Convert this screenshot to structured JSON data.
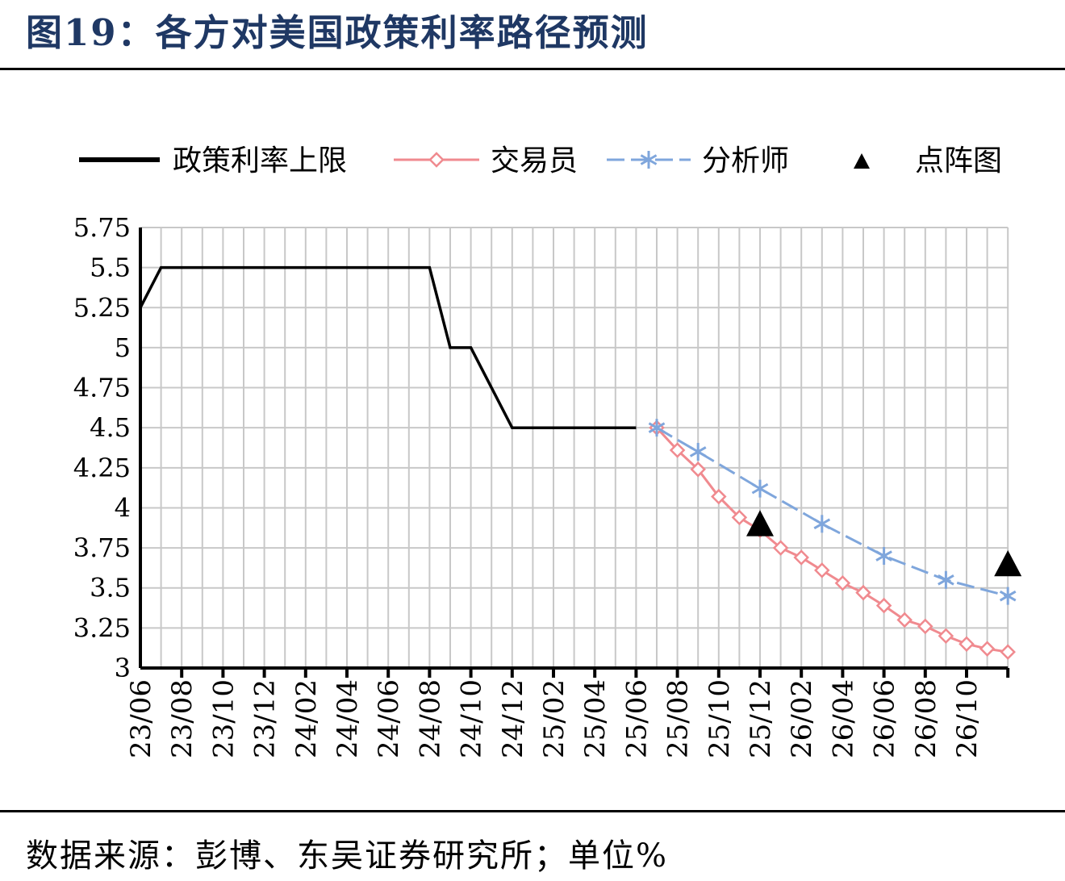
{
  "figure": {
    "title": "图19：各方对美国政策利率路径预测",
    "source": "数据来源：彭博、东吴证券研究所；单位%"
  },
  "colors": {
    "policy": "#000000",
    "trader": "#f08a8f",
    "analyst": "#7fa6dc",
    "dotplot": "#000000",
    "grid": "#c8c8c8",
    "title": "#1f3864"
  },
  "chart_data": {
    "type": "line",
    "x_ticks": [
      "23/06",
      "23/08",
      "23/10",
      "23/12",
      "24/02",
      "24/04",
      "24/06",
      "24/08",
      "24/10",
      "24/12",
      "25/02",
      "25/04",
      "25/06",
      "25/08",
      "25/10",
      "25/12",
      "26/02",
      "26/04",
      "26/06",
      "26/08",
      "26/10"
    ],
    "y_ticks": [
      "5.75",
      "5.5",
      "5.25",
      "5",
      "4.75",
      "4.5",
      "4.25",
      "4",
      "3.75",
      "3.5",
      "3.25",
      "3"
    ],
    "ylim": [
      3,
      5.75
    ],
    "grid": true,
    "legend_position": "top",
    "series": [
      {
        "name": "政策利率上限",
        "marker": "none",
        "points": [
          [
            "2023-06",
            5.25
          ],
          [
            "2023-07",
            5.5
          ],
          [
            "2024-08",
            5.5
          ],
          [
            "2024-09",
            5.0
          ],
          [
            "2024-10",
            5.0
          ],
          [
            "2024-12",
            4.5
          ],
          [
            "2025-06",
            4.5
          ]
        ]
      },
      {
        "name": "交易员",
        "marker": "diamond",
        "points": [
          [
            "2025-07",
            4.5
          ],
          [
            "2025-08",
            4.36
          ],
          [
            "2025-09",
            4.24
          ],
          [
            "2025-10",
            4.07
          ],
          [
            "2025-11",
            3.94
          ],
          [
            "2025-12",
            3.86
          ],
          [
            "2026-01",
            3.75
          ],
          [
            "2026-02",
            3.69
          ],
          [
            "2026-03",
            3.61
          ],
          [
            "2026-04",
            3.53
          ],
          [
            "2026-05",
            3.47
          ],
          [
            "2026-06",
            3.39
          ],
          [
            "2026-07",
            3.3
          ],
          [
            "2026-08",
            3.26
          ],
          [
            "2026-09",
            3.2
          ],
          [
            "2026-10",
            3.15
          ],
          [
            "2026-11",
            3.12
          ],
          [
            "2026-12",
            3.1
          ]
        ]
      },
      {
        "name": "分析师",
        "marker": "asterisk",
        "points": [
          [
            "2025-07",
            4.5
          ],
          [
            "2025-09",
            4.35
          ],
          [
            "2025-12",
            4.12
          ],
          [
            "2026-03",
            3.9
          ],
          [
            "2026-06",
            3.7
          ],
          [
            "2026-09",
            3.55
          ],
          [
            "2026-12",
            3.45
          ]
        ]
      },
      {
        "name": "点阵图",
        "marker": "triangle",
        "points": [
          [
            "2025-12",
            3.9
          ],
          [
            "2026-12",
            3.65
          ]
        ]
      }
    ]
  }
}
